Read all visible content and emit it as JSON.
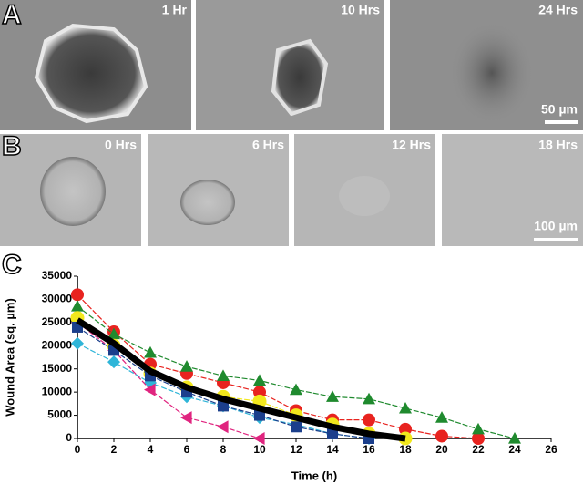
{
  "panel_a": {
    "label": "A",
    "captions": [
      "1 Hr",
      "10 Hrs",
      "24 Hrs"
    ],
    "scale": "50 µm"
  },
  "panel_b": {
    "label": "B",
    "captions": [
      "0 Hrs",
      "6 Hrs",
      "12 Hrs",
      "18 Hrs"
    ],
    "scale": "100 µm"
  },
  "panel_c": {
    "label": "C"
  },
  "chart_data": {
    "type": "line",
    "xlabel": "Time (h)",
    "ylabel": "Wound Area (sq. µm)",
    "xlim": [
      0,
      26
    ],
    "xticks": [
      0,
      2,
      4,
      6,
      8,
      10,
      12,
      14,
      16,
      18,
      20,
      22,
      24,
      26
    ],
    "ylim": [
      0,
      35000
    ],
    "yticks": [
      0,
      5000,
      10000,
      15000,
      20000,
      25000,
      30000,
      35000
    ],
    "series": [
      {
        "color": "#e8231f",
        "marker": "circle",
        "x": [
          0,
          2,
          4,
          6,
          8,
          10,
          12,
          14,
          16,
          18,
          20,
          22
        ],
        "values": [
          31000,
          23000,
          16000,
          14000,
          12000,
          10000,
          6000,
          4000,
          4000,
          2000,
          500,
          0
        ]
      },
      {
        "color": "#1f8a2e",
        "marker": "triangle",
        "x": [
          0,
          2,
          4,
          6,
          8,
          10,
          12,
          14,
          16,
          18,
          20,
          22,
          24
        ],
        "values": [
          28500,
          22500,
          18500,
          15500,
          13500,
          12500,
          10500,
          9000,
          8500,
          6500,
          4500,
          2000,
          0
        ]
      },
      {
        "color": "#2fb5d8",
        "marker": "diamond",
        "x": [
          0,
          2,
          4,
          6,
          8,
          10,
          12,
          14,
          16
        ],
        "values": [
          20500,
          16500,
          12000,
          9000,
          7000,
          4500,
          3000,
          1000,
          0
        ]
      },
      {
        "color": "#e0247f",
        "marker": "triangle-left",
        "x": [
          0,
          2,
          4,
          6,
          8,
          10
        ],
        "values": [
          25000,
          19000,
          10500,
          4500,
          2500,
          0
        ]
      },
      {
        "color": "#f2e81c",
        "marker": "circle",
        "x": [
          0,
          2,
          4,
          6,
          8,
          10,
          12,
          14,
          16,
          18
        ],
        "values": [
          26000,
          20000,
          14000,
          11000,
          9000,
          8000,
          5000,
          3000,
          1000,
          0
        ]
      },
      {
        "color": "#1b3f8c",
        "marker": "square",
        "x": [
          0,
          2,
          4,
          6,
          8,
          10,
          12,
          14,
          16
        ],
        "values": [
          24000,
          19000,
          13500,
          10000,
          7000,
          5000,
          2500,
          1000,
          0
        ]
      },
      {
        "color": "#000000",
        "marker": "none",
        "width": 7,
        "x": [
          0,
          2,
          4,
          6,
          8,
          10,
          12,
          14,
          16,
          18
        ],
        "values": [
          25500,
          20500,
          14500,
          11000,
          8500,
          6500,
          4500,
          2500,
          1000,
          0
        ]
      }
    ]
  }
}
